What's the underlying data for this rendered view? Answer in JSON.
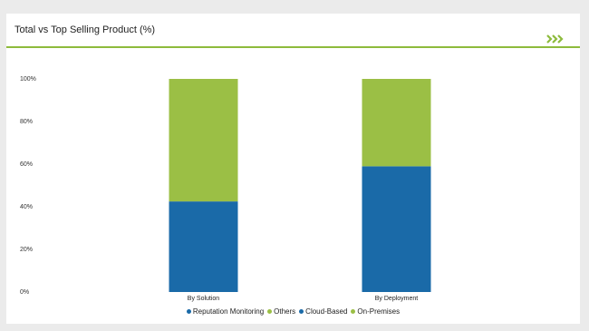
{
  "chart_data": {
    "type": "stacked_bar",
    "title": "Total vs Top Selling Product (%)",
    "categories": [
      "By Solution",
      "By Deployment"
    ],
    "series": [
      {
        "name": "Reputation Monitoring",
        "color": "#1a6aa8",
        "values": [
          42.5,
          null
        ]
      },
      {
        "name": "Others",
        "color": "#9bbf45",
        "values": [
          57.5,
          null
        ]
      },
      {
        "name": "Cloud-Based",
        "color": "#1a6aa8",
        "values": [
          null,
          59
        ]
      },
      {
        "name": "On-Premises",
        "color": "#9bbf45",
        "values": [
          null,
          41
        ]
      }
    ],
    "ylim": [
      0,
      100
    ],
    "yticks": [
      {
        "value": 0,
        "label": "0%"
      },
      {
        "value": 20,
        "label": "20%"
      },
      {
        "value": 40,
        "label": "40%"
      },
      {
        "value": 60,
        "label": "60%"
      },
      {
        "value": 80,
        "label": "80%"
      },
      {
        "value": 100,
        "label": "100%"
      }
    ],
    "grid": false
  }
}
